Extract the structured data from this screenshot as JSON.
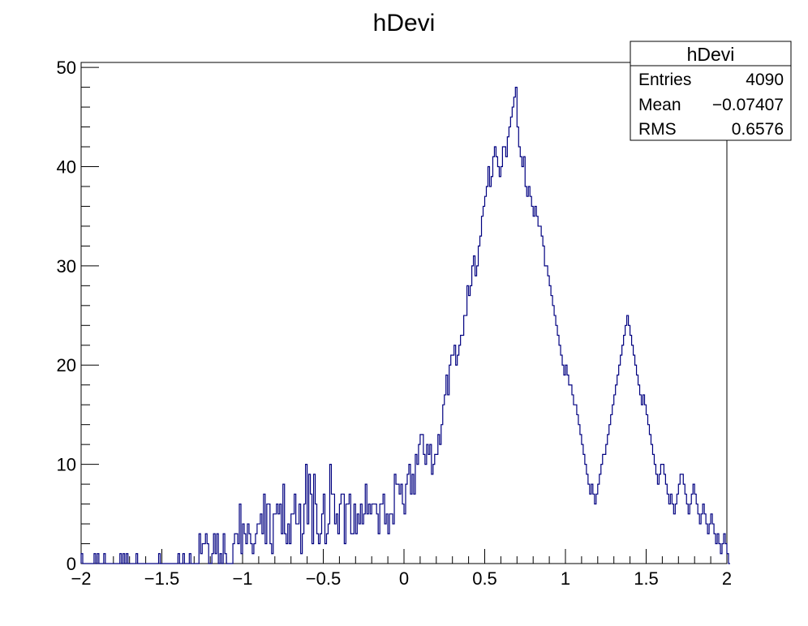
{
  "chart_data": {
    "type": "bar",
    "title": "hDevi",
    "xlabel": "",
    "ylabel": "",
    "xlim": [
      -2,
      2
    ],
    "ylim": [
      0,
      50.5
    ],
    "bin_width": 0.01,
    "x_ticks": [
      -2,
      -1.5,
      -1,
      -0.5,
      0,
      0.5,
      1,
      1.5,
      2
    ],
    "x_tick_labels": [
      "−2",
      "−1.5",
      "−1",
      "−0.5",
      "0",
      "0.5",
      "1",
      "1.5",
      "2"
    ],
    "y_ticks": [
      0,
      10,
      20,
      30,
      40,
      50
    ],
    "y_tick_labels": [
      "0",
      "10",
      "20",
      "30",
      "40",
      "50"
    ],
    "grid": false,
    "line_color": "#000080",
    "stats_box": {
      "title": "hDevi",
      "placement": "top-right",
      "rows": [
        {
          "label": "Entries",
          "value": "4090"
        },
        {
          "label": "Mean",
          "value": "−0.07407"
        },
        {
          "label": "RMS",
          "value": "0.6576"
        }
      ]
    },
    "series": [
      {
        "values": [
          1,
          0,
          0,
          0,
          0,
          0,
          0,
          0,
          1,
          0,
          1,
          0,
          0,
          0,
          1,
          0,
          0,
          0,
          0,
          0,
          0,
          0,
          0,
          0,
          1,
          0,
          1,
          0,
          1,
          0,
          0,
          0,
          0,
          0,
          1,
          0,
          0,
          0,
          0,
          0,
          0,
          0,
          0,
          0,
          0,
          0,
          0,
          0,
          1,
          0,
          0,
          0,
          0,
          0,
          0,
          0,
          0,
          0,
          0,
          0,
          1,
          0,
          0,
          1,
          0,
          0,
          0,
          1,
          0,
          0,
          0,
          0,
          0,
          3,
          1,
          2,
          2,
          3,
          2,
          0,
          0,
          1,
          3,
          1,
          3,
          0,
          1,
          0,
          3,
          1,
          0,
          0,
          0,
          0,
          2,
          3,
          3,
          2,
          6,
          1,
          4,
          3,
          2,
          4,
          3,
          2,
          1,
          2,
          3,
          4,
          4,
          5,
          3,
          7,
          2,
          6,
          6,
          2,
          1,
          5,
          5,
          6,
          5,
          6,
          3,
          8,
          3,
          2,
          4,
          2,
          5,
          5,
          7,
          4,
          4,
          6,
          1,
          3,
          6,
          10,
          4,
          9,
          7,
          2,
          9,
          6,
          3,
          2,
          3,
          5,
          7,
          2,
          3,
          4,
          10,
          7,
          7,
          4,
          5,
          3,
          6,
          7,
          7,
          2,
          6,
          6,
          7,
          3,
          3,
          6,
          3,
          5,
          4,
          6,
          4,
          5,
          8,
          5,
          6,
          5,
          6,
          6,
          6,
          5,
          3,
          6,
          6,
          7,
          4,
          5,
          3,
          5,
          5,
          4,
          9,
          8,
          8,
          7,
          8,
          6,
          5,
          8,
          9,
          10,
          7,
          9,
          7,
          11,
          10,
          12,
          13,
          13,
          11,
          10,
          12,
          11,
          12,
          9,
          10,
          11,
          11,
          13,
          12,
          14,
          16,
          17,
          19,
          17,
          20,
          21,
          21,
          22,
          20,
          21,
          22,
          23,
          23,
          25,
          25,
          28,
          27,
          28,
          30,
          31,
          29,
          30,
          32,
          33,
          35,
          36,
          37,
          38,
          40,
          38,
          39,
          41,
          42,
          41,
          40,
          39,
          40,
          42,
          42,
          41,
          43,
          44,
          45,
          46,
          47,
          48,
          44,
          42,
          41,
          40,
          41,
          38,
          37,
          38,
          37,
          36,
          35,
          36,
          35,
          34,
          34,
          33,
          32,
          30,
          30,
          29,
          28,
          27,
          26,
          25,
          24,
          23,
          22,
          21,
          20,
          19,
          20,
          19,
          18,
          18,
          17,
          16,
          16,
          15,
          14,
          13,
          12,
          11,
          10,
          9,
          8,
          7,
          8,
          7,
          6,
          7,
          8,
          9,
          10,
          11,
          11,
          12,
          13,
          14,
          15,
          16,
          17,
          18,
          19,
          20,
          21,
          22,
          23,
          24,
          25,
          24,
          23,
          22,
          21,
          20,
          19,
          18,
          17,
          16,
          17,
          16,
          15,
          14,
          13,
          12,
          11,
          10,
          9,
          8,
          9,
          10,
          10,
          9,
          8,
          7,
          6,
          7,
          6,
          5,
          6,
          7,
          8,
          9,
          9,
          8,
          7,
          6,
          5,
          6,
          7,
          8,
          7,
          6,
          5,
          4,
          5,
          6,
          5,
          4,
          3,
          4,
          5,
          4,
          3,
          2,
          3,
          2,
          1,
          2,
          3,
          2,
          1,
          0
        ]
      }
    ]
  }
}
